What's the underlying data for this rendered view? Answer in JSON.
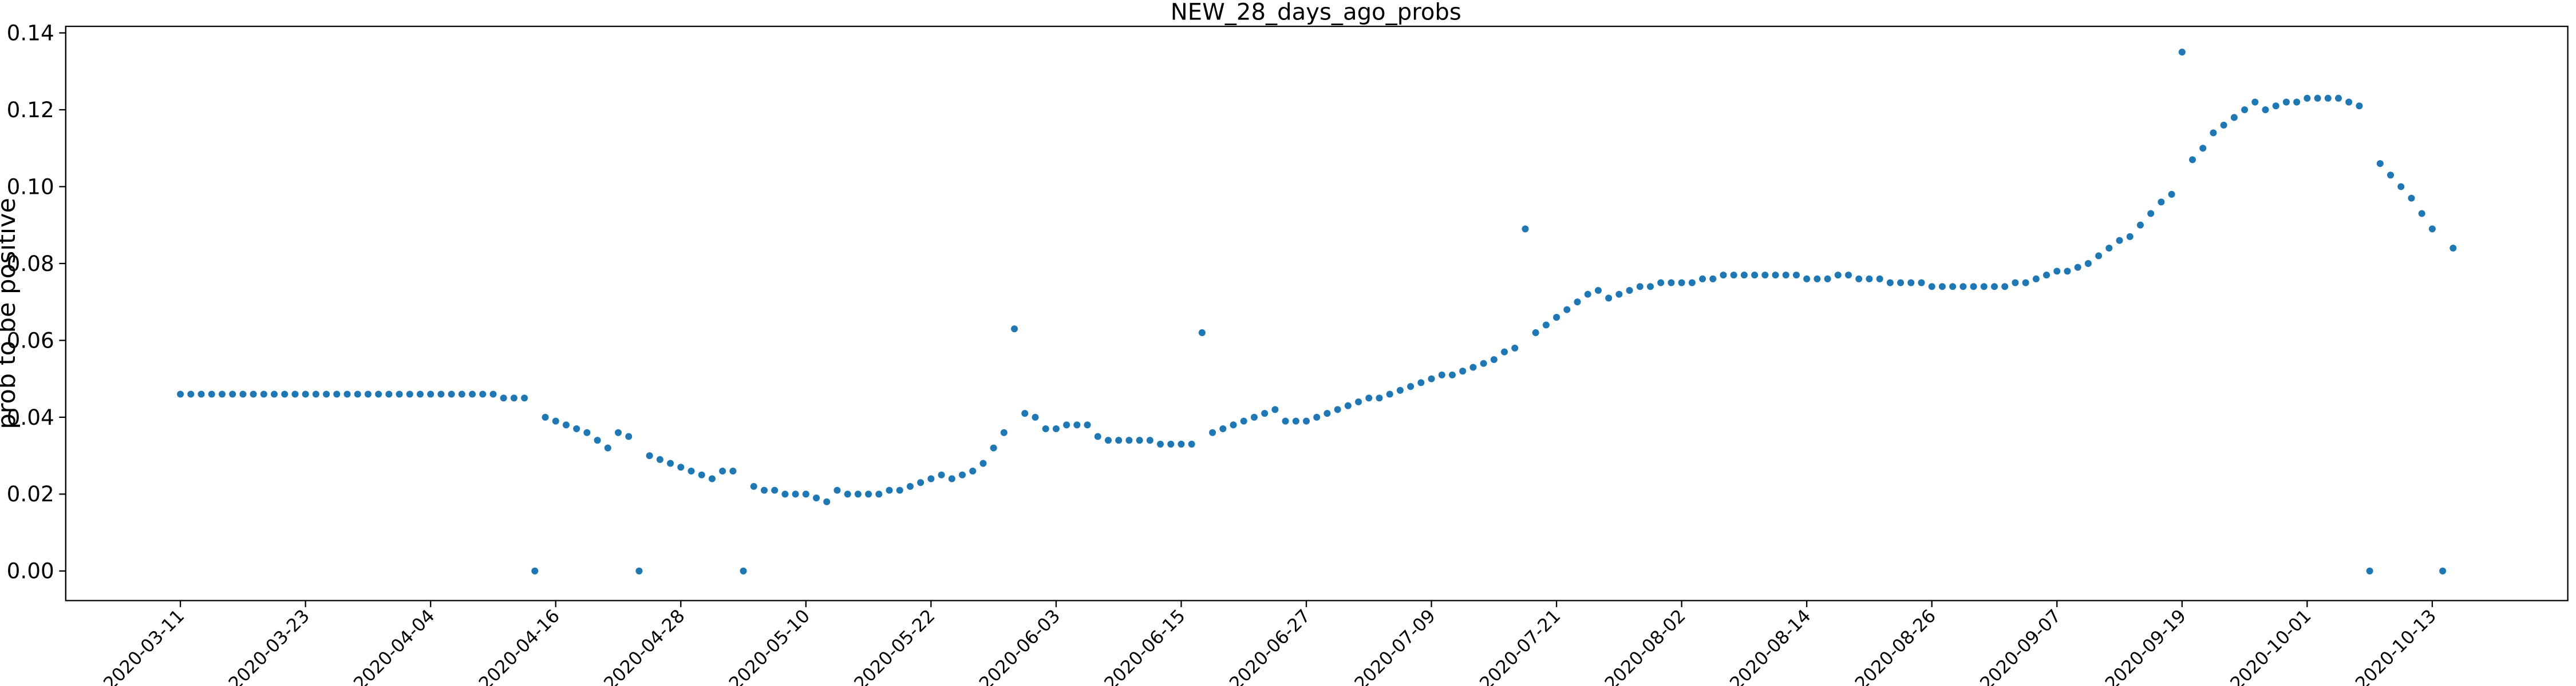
{
  "chart_data": {
    "type": "scatter",
    "title": "NEW_28_days_ago_probs",
    "ylabel": "prob to be positive",
    "color": "#1f77b4",
    "x": [
      "2020-03-11",
      "2020-03-12",
      "2020-03-13",
      "2020-03-14",
      "2020-03-15",
      "2020-03-16",
      "2020-03-17",
      "2020-03-18",
      "2020-03-19",
      "2020-03-20",
      "2020-03-21",
      "2020-03-22",
      "2020-03-23",
      "2020-03-24",
      "2020-03-25",
      "2020-03-26",
      "2020-03-27",
      "2020-03-28",
      "2020-03-29",
      "2020-03-30",
      "2020-03-31",
      "2020-04-01",
      "2020-04-02",
      "2020-04-03",
      "2020-04-04",
      "2020-04-05",
      "2020-04-06",
      "2020-04-07",
      "2020-04-08",
      "2020-04-09",
      "2020-04-10",
      "2020-04-11",
      "2020-04-12",
      "2020-04-13",
      "2020-04-14",
      "2020-04-15",
      "2020-04-16",
      "2020-04-17",
      "2020-04-18",
      "2020-04-19",
      "2020-04-20",
      "2020-04-21",
      "2020-04-22",
      "2020-04-23",
      "2020-04-24",
      "2020-04-25",
      "2020-04-26",
      "2020-04-27",
      "2020-04-28",
      "2020-04-29",
      "2020-04-30",
      "2020-05-01",
      "2020-05-02",
      "2020-05-03",
      "2020-05-04",
      "2020-05-05",
      "2020-05-06",
      "2020-05-07",
      "2020-05-08",
      "2020-05-09",
      "2020-05-10",
      "2020-05-11",
      "2020-05-12",
      "2020-05-13",
      "2020-05-14",
      "2020-05-15",
      "2020-05-16",
      "2020-05-17",
      "2020-05-18",
      "2020-05-19",
      "2020-05-20",
      "2020-05-21",
      "2020-05-22",
      "2020-05-23",
      "2020-05-24",
      "2020-05-25",
      "2020-05-26",
      "2020-05-27",
      "2020-05-28",
      "2020-05-29",
      "2020-05-30",
      "2020-05-31",
      "2020-06-01",
      "2020-06-02",
      "2020-06-03",
      "2020-06-04",
      "2020-06-05",
      "2020-06-06",
      "2020-06-07",
      "2020-06-08",
      "2020-06-09",
      "2020-06-10",
      "2020-06-11",
      "2020-06-12",
      "2020-06-13",
      "2020-06-14",
      "2020-06-15",
      "2020-06-16",
      "2020-06-17",
      "2020-06-18",
      "2020-06-19",
      "2020-06-20",
      "2020-06-21",
      "2020-06-22",
      "2020-06-23",
      "2020-06-24",
      "2020-06-25",
      "2020-06-26",
      "2020-06-27",
      "2020-06-28",
      "2020-06-29",
      "2020-06-30",
      "2020-07-01",
      "2020-07-02",
      "2020-07-03",
      "2020-07-04",
      "2020-07-05",
      "2020-07-06",
      "2020-07-07",
      "2020-07-08",
      "2020-07-09",
      "2020-07-10",
      "2020-07-11",
      "2020-07-12",
      "2020-07-13",
      "2020-07-14",
      "2020-07-15",
      "2020-07-16",
      "2020-07-17",
      "2020-07-18",
      "2020-07-19",
      "2020-07-20",
      "2020-07-21",
      "2020-07-22",
      "2020-07-23",
      "2020-07-24",
      "2020-07-25",
      "2020-07-26",
      "2020-07-27",
      "2020-07-28",
      "2020-07-29",
      "2020-07-30",
      "2020-07-31",
      "2020-08-01",
      "2020-08-02",
      "2020-08-03",
      "2020-08-04",
      "2020-08-05",
      "2020-08-06",
      "2020-08-07",
      "2020-08-08",
      "2020-08-09",
      "2020-08-10",
      "2020-08-11",
      "2020-08-12",
      "2020-08-13",
      "2020-08-14",
      "2020-08-15",
      "2020-08-16",
      "2020-08-17",
      "2020-08-18",
      "2020-08-19",
      "2020-08-20",
      "2020-08-21",
      "2020-08-22",
      "2020-08-23",
      "2020-08-24",
      "2020-08-25",
      "2020-08-26",
      "2020-08-27",
      "2020-08-28",
      "2020-08-29",
      "2020-08-30",
      "2020-08-31",
      "2020-09-01",
      "2020-09-02",
      "2020-09-03",
      "2020-09-04",
      "2020-09-05",
      "2020-09-06",
      "2020-09-07",
      "2020-09-08",
      "2020-09-09",
      "2020-09-10",
      "2020-09-11",
      "2020-09-12",
      "2020-09-13",
      "2020-09-14",
      "2020-09-15",
      "2020-09-16",
      "2020-09-17",
      "2020-09-18",
      "2020-09-19",
      "2020-09-20",
      "2020-09-21",
      "2020-09-22",
      "2020-09-23",
      "2020-09-24",
      "2020-09-25",
      "2020-09-26",
      "2020-09-27",
      "2020-09-28",
      "2020-09-29",
      "2020-09-30",
      "2020-10-01",
      "2020-10-02",
      "2020-10-03",
      "2020-10-04",
      "2020-10-05",
      "2020-10-06",
      "2020-10-07",
      "2020-10-08",
      "2020-10-09",
      "2020-10-10",
      "2020-10-11",
      "2020-10-12",
      "2020-10-13",
      "2020-10-14",
      "2020-10-15"
    ],
    "values": [
      0.046,
      0.046,
      0.046,
      0.046,
      0.046,
      0.046,
      0.046,
      0.046,
      0.046,
      0.046,
      0.046,
      0.046,
      0.046,
      0.046,
      0.046,
      0.046,
      0.046,
      0.046,
      0.046,
      0.046,
      0.046,
      0.046,
      0.046,
      0.046,
      0.046,
      0.046,
      0.046,
      0.046,
      0.046,
      0.046,
      0.046,
      0.045,
      0.045,
      0.045,
      0,
      0.04,
      0.039,
      0.038,
      0.037,
      0.036,
      0.034,
      0.032,
      0.036,
      0.035,
      0,
      0.03,
      0.029,
      0.028,
      0.027,
      0.026,
      0.025,
      0.024,
      0.026,
      0.026,
      0,
      0.022,
      0.021,
      0.021,
      0.02,
      0.02,
      0.02,
      0.019,
      0.018,
      0.021,
      0.02,
      0.02,
      0.02,
      0.02,
      0.021,
      0.021,
      0.022,
      0.023,
      0.024,
      0.025,
      0.024,
      0.025,
      0.026,
      0.028,
      0.032,
      0.036,
      0.063,
      0.041,
      0.04,
      0.037,
      0.037,
      0.038,
      0.038,
      0.038,
      0.035,
      0.034,
      0.034,
      0.034,
      0.034,
      0.034,
      0.033,
      0.033,
      0.033,
      0.033,
      0.062,
      0.036,
      0.037,
      0.038,
      0.039,
      0.04,
      0.041,
      0.042,
      0.039,
      0.039,
      0.039,
      0.04,
      0.041,
      0.042,
      0.043,
      0.044,
      0.045,
      0.045,
      0.046,
      0.047,
      0.048,
      0.049,
      0.05,
      0.051,
      0.051,
      0.052,
      0.053,
      0.054,
      0.055,
      0.057,
      0.058,
      0.089,
      0.062,
      0.064,
      0.066,
      0.068,
      0.07,
      0.072,
      0.073,
      0.071,
      0.072,
      0.073,
      0.074,
      0.074,
      0.075,
      0.075,
      0.075,
      0.075,
      0.076,
      0.076,
      0.077,
      0.077,
      0.077,
      0.077,
      0.077,
      0.077,
      0.077,
      0.077,
      0.076,
      0.076,
      0.076,
      0.077,
      0.077,
      0.076,
      0.076,
      0.076,
      0.075,
      0.075,
      0.075,
      0.075,
      0.074,
      0.074,
      0.074,
      0.074,
      0.074,
      0.074,
      0.074,
      0.074,
      0.075,
      0.075,
      0.076,
      0.077,
      0.078,
      0.078,
      0.079,
      0.08,
      0.082,
      0.084,
      0.086,
      0.087,
      0.09,
      0.093,
      0.096,
      0.098,
      0.135,
      0.107,
      0.11,
      0.114,
      0.116,
      0.118,
      0.12,
      0.122,
      0.12,
      0.121,
      0.122,
      0.122,
      0.123,
      0.123,
      0.123,
      0.123,
      0.122,
      0.121,
      0,
      0.106,
      0.103,
      0.1,
      0.097,
      0.093,
      0.089,
      0,
      0.084
    ],
    "xlim": [
      "2020-02-29",
      "2020-10-26"
    ],
    "xticks": [
      "2020-03-11",
      "2020-03-23",
      "2020-04-04",
      "2020-04-16",
      "2020-04-28",
      "2020-05-10",
      "2020-05-22",
      "2020-06-03",
      "2020-06-15",
      "2020-06-27",
      "2020-07-09",
      "2020-07-21",
      "2020-08-02",
      "2020-08-14",
      "2020-08-26",
      "2020-09-07",
      "2020-09-19",
      "2020-10-01",
      "2020-10-13"
    ],
    "ylim": [
      -0.0077,
      0.1417
    ],
    "yticks": [
      {
        "value": 0,
        "label": "0.00"
      },
      {
        "value": 0.02,
        "label": "0.02"
      },
      {
        "value": 0.04,
        "label": "0.04"
      },
      {
        "value": 0.06,
        "label": "0.06"
      },
      {
        "value": 0.08,
        "label": "0.08"
      },
      {
        "value": 0.1,
        "label": "0.10"
      },
      {
        "value": 0.12,
        "label": "0.12"
      },
      {
        "value": 0.14,
        "label": "0.14"
      }
    ]
  }
}
